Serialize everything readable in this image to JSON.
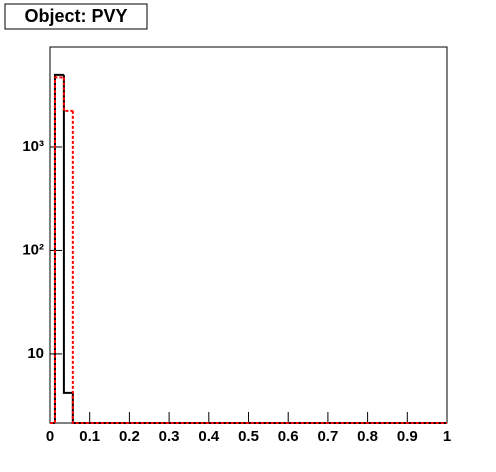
{
  "chart_data": {
    "type": "histogram",
    "title": "Object: PVY",
    "bins": [
      0,
      0.0125,
      0.035,
      0.0575,
      1
    ],
    "series": [
      {
        "color": "#000000",
        "dash": "solid",
        "values": [
          0,
          4970,
          4.2,
          0
        ]
      },
      {
        "color": "#ff0000",
        "dash": "dotted",
        "values": [
          0,
          4700,
          2230,
          0
        ]
      }
    ],
    "xlim": [
      0,
      1
    ],
    "xticks": [
      0,
      0.1,
      0.2,
      0.3,
      0.4,
      0.5,
      0.6,
      0.7,
      0.8,
      0.9,
      1
    ],
    "ylim": [
      2.15,
      9250
    ],
    "log_y": true,
    "yticks": [
      10,
      {
        "value": 100,
        "label": "10²"
      },
      {
        "value": 1000,
        "label": "10³"
      }
    ]
  }
}
